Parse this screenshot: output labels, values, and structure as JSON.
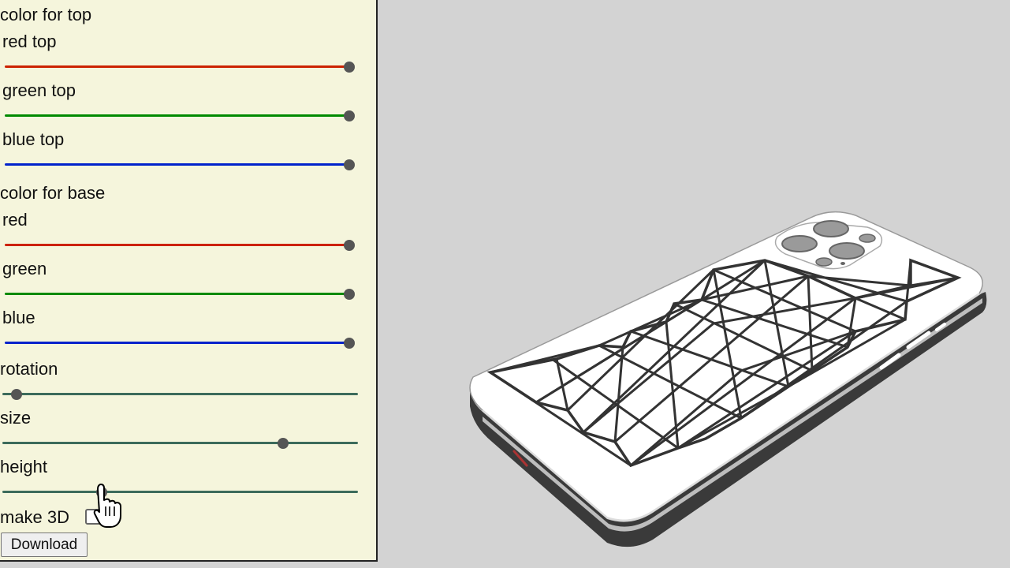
{
  "controls": {
    "top_section_label": "color for top",
    "base_section_label": "color for base",
    "top_sliders": [
      {
        "label": "red top",
        "value": 1.0,
        "color": "#cc2200"
      },
      {
        "label": "green top",
        "value": 1.0,
        "color": "#008a00"
      },
      {
        "label": "blue top",
        "value": 1.0,
        "color": "#0022cc"
      }
    ],
    "base_sliders": [
      {
        "label": "red",
        "value": 1.0,
        "color": "#cc2200"
      },
      {
        "label": "green",
        "value": 1.0,
        "color": "#008a00"
      },
      {
        "label": "blue",
        "value": 1.0,
        "color": "#0022cc"
      }
    ],
    "param_sliders": [
      {
        "label": "rotation",
        "value": 0.04
      },
      {
        "label": "size",
        "value": 0.79
      },
      {
        "label": "height",
        "value": 0.28
      }
    ],
    "make3d_label": "make 3D",
    "make3d_checked": false,
    "download_label": "Download"
  },
  "theme": {
    "panel_background": "#f5f5dc",
    "viewport_background": "#d3d3d3",
    "param_track_color": "#3c6b5b",
    "thumb_color": "#555555"
  },
  "viewport": {
    "content": "phone-case-3d-preview"
  }
}
